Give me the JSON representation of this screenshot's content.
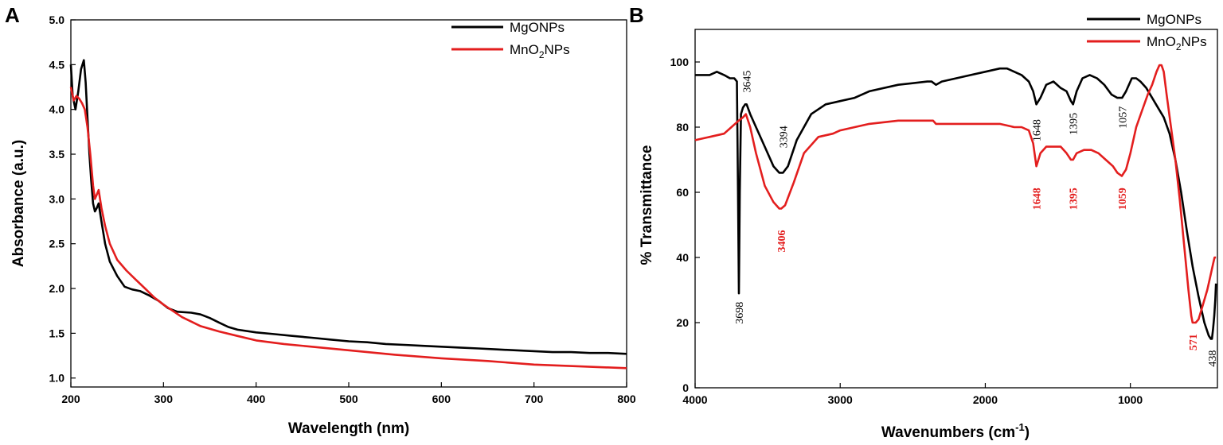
{
  "colors": {
    "MgONPs": "#000000",
    "MnO2NPs": "#e31e1e"
  },
  "chart_data": [
    {
      "panel": "A",
      "type": "line",
      "xlabel": "Wavelength (nm)",
      "ylabel": "Absorbance (a.u.)",
      "xlim": [
        200,
        800
      ],
      "ylim": [
        0.9,
        5.0
      ],
      "xticks": [
        "200",
        "300",
        "400",
        "500",
        "600",
        "700",
        "800"
      ],
      "yticks": [
        "1.0",
        "1.5",
        "2.0",
        "2.5",
        "3.0",
        "3.5",
        "4.0",
        "4.5",
        "5.0"
      ],
      "legend": [
        "MgONPs",
        "MnO2NPs"
      ],
      "legend_display": [
        {
          "text": "MgONPs",
          "base": "MgONPs",
          "sub": "",
          "rest": ""
        },
        {
          "text": "MnO2NPs",
          "base": "MnO",
          "sub": "2",
          "rest": "NPs"
        }
      ],
      "series": [
        {
          "name": "MgONPs",
          "x": [
            200,
            202,
            205,
            208,
            211,
            214,
            216,
            218,
            220,
            222,
            224,
            226,
            228,
            230,
            233,
            237,
            242,
            250,
            258,
            266,
            275,
            285,
            295,
            305,
            315,
            330,
            340,
            350,
            360,
            370,
            380,
            400,
            420,
            440,
            460,
            480,
            500,
            520,
            540,
            560,
            580,
            600,
            620,
            640,
            660,
            680,
            700,
            720,
            740,
            760,
            780,
            800
          ],
          "y": [
            4.5,
            4.15,
            4.0,
            4.2,
            4.45,
            4.55,
            4.3,
            3.9,
            3.5,
            3.2,
            2.95,
            2.86,
            2.9,
            2.95,
            2.75,
            2.5,
            2.3,
            2.14,
            2.02,
            1.99,
            1.97,
            1.92,
            1.86,
            1.78,
            1.74,
            1.73,
            1.71,
            1.67,
            1.62,
            1.57,
            1.54,
            1.51,
            1.49,
            1.47,
            1.45,
            1.43,
            1.41,
            1.4,
            1.38,
            1.37,
            1.36,
            1.35,
            1.34,
            1.33,
            1.32,
            1.31,
            1.3,
            1.29,
            1.29,
            1.28,
            1.28,
            1.27
          ]
        },
        {
          "name": "MnO2NPs",
          "x": [
            200,
            203,
            206,
            209,
            212,
            215,
            218,
            221,
            224,
            226,
            228,
            230,
            233,
            237,
            242,
            250,
            260,
            270,
            280,
            290,
            300,
            310,
            320,
            330,
            340,
            360,
            380,
            400,
            430,
            460,
            500,
            550,
            600,
            650,
            700,
            750,
            800
          ],
          "y": [
            4.25,
            4.1,
            4.15,
            4.12,
            4.07,
            4.0,
            3.8,
            3.5,
            3.15,
            3.0,
            3.05,
            3.1,
            2.9,
            2.7,
            2.5,
            2.32,
            2.2,
            2.1,
            2.0,
            1.9,
            1.82,
            1.75,
            1.68,
            1.63,
            1.58,
            1.52,
            1.47,
            1.42,
            1.38,
            1.35,
            1.31,
            1.26,
            1.22,
            1.19,
            1.15,
            1.13,
            1.11
          ]
        }
      ]
    },
    {
      "panel": "B",
      "type": "line",
      "xlabel_parts": {
        "base": "Wavenumbers (cm",
        "sup": "-1",
        "end": ")"
      },
      "ylabel": "% Transmittance",
      "xlim": [
        4000,
        400
      ],
      "ylim": [
        0,
        110
      ],
      "xticks": [
        "4000",
        "3000",
        "2000",
        "1000"
      ],
      "yticks": [
        "0",
        "20",
        "40",
        "60",
        "80",
        "100"
      ],
      "legend": [
        "MgONPs",
        "MnO2NPs"
      ],
      "legend_display": [
        {
          "text": "MgONPs",
          "base": "MgONPs",
          "sub": "",
          "rest": ""
        },
        {
          "text": "MnO2NPs",
          "base": "MnO",
          "sub": "2",
          "rest": "NPs"
        }
      ],
      "annotations": [
        {
          "text": "3698",
          "series": "MgONPs",
          "x": 3698,
          "y": 23
        },
        {
          "text": "3645",
          "series": "MgONPs",
          "x": 3645,
          "y": 94
        },
        {
          "text": "3394",
          "series": "MgONPs",
          "x": 3394,
          "y": 77
        },
        {
          "text": "1648",
          "series": "MgONPs",
          "x": 1648,
          "y": 79
        },
        {
          "text": "1395",
          "series": "MgONPs",
          "x": 1395,
          "y": 81
        },
        {
          "text": "1057",
          "series": "MgONPs",
          "x": 1057,
          "y": 83
        },
        {
          "text": "438",
          "series": "MgONPs",
          "x": 438,
          "y": 9
        },
        {
          "text": "3406",
          "series": "MnO2NPs",
          "x": 3406,
          "y": 45
        },
        {
          "text": "1648",
          "series": "MnO2NPs",
          "x": 1648,
          "y": 58
        },
        {
          "text": "1395",
          "series": "MnO2NPs",
          "x": 1395,
          "y": 58
        },
        {
          "text": "1059",
          "series": "MnO2NPs",
          "x": 1059,
          "y": 58
        },
        {
          "text": "571",
          "series": "MnO2NPs",
          "x": 571,
          "y": 14
        }
      ],
      "series": [
        {
          "name": "MgONPs",
          "x": [
            4000,
            3900,
            3850,
            3800,
            3760,
            3730,
            3712,
            3704,
            3698,
            3692,
            3684,
            3670,
            3655,
            3645,
            3620,
            3580,
            3520,
            3460,
            3420,
            3394,
            3360,
            3300,
            3200,
            3100,
            3000,
            2900,
            2800,
            2600,
            2400,
            2370,
            2340,
            2300,
            2200,
            2100,
            2000,
            1900,
            1850,
            1800,
            1750,
            1700,
            1670,
            1648,
            1620,
            1580,
            1530,
            1480,
            1440,
            1410,
            1395,
            1370,
            1330,
            1280,
            1230,
            1180,
            1130,
            1090,
            1057,
            1030,
            990,
            960,
            930,
            890,
            850,
            810,
            770,
            730,
            690,
            650,
            610,
            570,
            530,
            490,
            460,
            445,
            438,
            430,
            422,
            415,
            410
          ],
          "y": [
            96,
            96,
            97,
            96,
            95,
            95,
            94,
            60,
            29,
            60,
            84,
            86,
            87,
            87,
            84,
            80,
            74,
            68,
            66,
            66,
            68,
            76,
            84,
            87,
            88,
            89,
            91,
            93,
            94,
            94,
            93,
            94,
            95,
            96,
            97,
            98,
            98,
            97,
            96,
            94,
            91,
            87,
            89,
            93,
            94,
            92,
            91,
            88,
            87,
            91,
            95,
            96,
            95,
            93,
            90,
            89,
            89,
            91,
            95,
            95,
            94,
            92,
            89,
            86,
            83,
            78,
            70,
            60,
            48,
            37,
            28,
            20,
            16,
            15,
            15,
            18,
            22,
            27,
            32
          ]
        },
        {
          "name": "MnO2NPs",
          "x": [
            4000,
            3900,
            3800,
            3750,
            3700,
            3670,
            3650,
            3620,
            3580,
            3520,
            3460,
            3420,
            3406,
            3380,
            3320,
            3250,
            3150,
            3050,
            3000,
            2900,
            2800,
            2600,
            2400,
            2360,
            2340,
            2300,
            2200,
            2100,
            2000,
            1900,
            1800,
            1750,
            1700,
            1670,
            1648,
            1620,
            1580,
            1530,
            1480,
            1440,
            1410,
            1395,
            1370,
            1320,
            1270,
            1220,
            1170,
            1120,
            1090,
            1059,
            1030,
            1000,
            960,
            920,
            880,
            850,
            820,
            800,
            785,
            770,
            750,
            720,
            690,
            660,
            630,
            600,
            580,
            571,
            550,
            530,
            510,
            490,
            470,
            450,
            430,
            420,
            410
          ],
          "y": [
            76,
            77,
            78,
            80,
            82,
            83,
            84,
            80,
            72,
            62,
            57,
            55,
            55,
            56,
            63,
            72,
            77,
            78,
            79,
            80,
            81,
            82,
            82,
            82,
            81,
            81,
            81,
            81,
            81,
            81,
            80,
            80,
            79,
            75,
            68,
            72,
            74,
            74,
            74,
            72,
            70,
            70,
            72,
            73,
            73,
            72,
            70,
            68,
            66,
            65,
            67,
            72,
            80,
            85,
            90,
            93,
            97,
            99,
            99,
            97,
            90,
            80,
            70,
            58,
            44,
            30,
            22,
            20,
            20,
            21,
            24,
            27,
            30,
            34,
            38,
            40,
            40
          ]
        }
      ]
    }
  ]
}
